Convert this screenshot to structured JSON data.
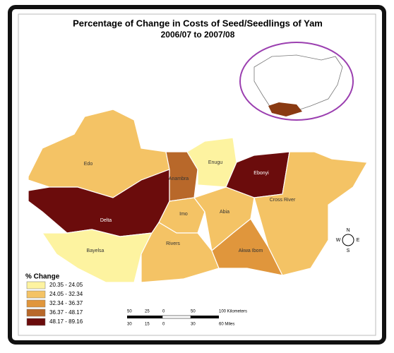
{
  "title": "Percentage of Change in Costs of Seed/Seedlings of Yam",
  "subtitle": "2006/07 to 2007/08",
  "states": [
    {
      "label": "Edo",
      "color": "#f4c365"
    },
    {
      "label": "Delta",
      "color": "#6b0c0c"
    },
    {
      "label": "Bayelsa",
      "color": "#fdf3a0"
    },
    {
      "label": "Anambra",
      "color": "#b8682a"
    },
    {
      "label": "Enugu",
      "color": "#fdf3a0"
    },
    {
      "label": "Ebonyi",
      "color": "#6b0c0c"
    },
    {
      "label": "Cross River",
      "color": "#f4c365"
    },
    {
      "label": "Imo",
      "color": "#f4c365"
    },
    {
      "label": "Abia",
      "color": "#f4c365"
    },
    {
      "label": "Rivers",
      "color": "#f4c365"
    },
    {
      "label": "Akwa Ibom",
      "color": "#e0963c"
    }
  ],
  "legend": {
    "title": "% Change",
    "items": [
      {
        "label": "20.35 - 24.05",
        "color": "#fdf3a0"
      },
      {
        "label": "24.05 - 32.34",
        "color": "#f4c365"
      },
      {
        "label": "32.34 - 36.37",
        "color": "#e0963c"
      },
      {
        "label": "36.37 - 48.17",
        "color": "#b8682a"
      },
      {
        "label": "48.17 - 89.16",
        "color": "#6b0c0c"
      }
    ]
  },
  "scale": {
    "km": [
      "50",
      "25",
      "0",
      "50",
      "100 Kilometers"
    ],
    "miles": [
      "30",
      "15",
      "0",
      "30",
      "60 Miles"
    ]
  },
  "compass": {
    "n": "N",
    "s": "S",
    "e": "E",
    "w": "W"
  }
}
